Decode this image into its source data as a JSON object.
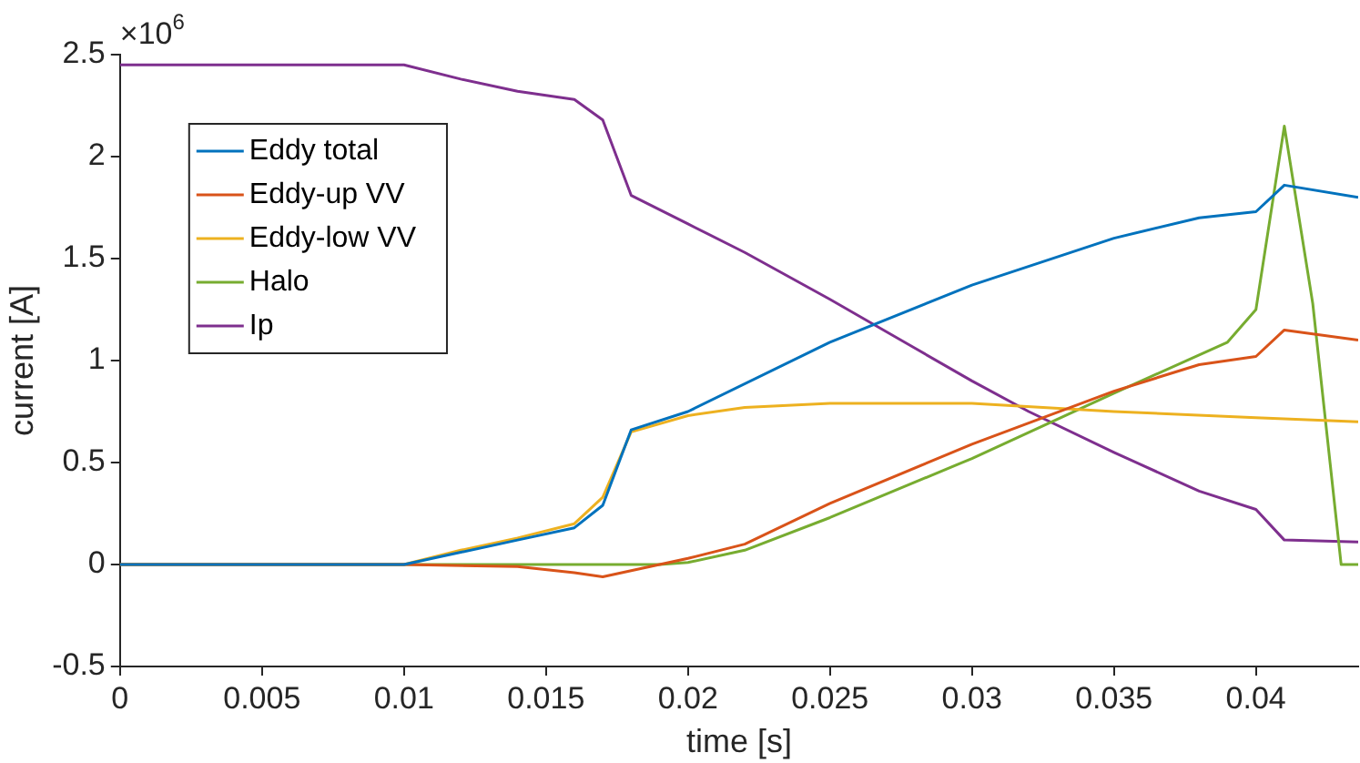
{
  "chart_data": {
    "type": "line",
    "xlabel": "time [s]",
    "ylabel": "current [A]",
    "annotations": [
      "×10$^{6}$"
    ],
    "xlim": [
      0,
      0.0436
    ],
    "xticks": [
      0,
      0.005,
      0.01,
      0.015,
      0.02,
      0.025,
      0.03,
      0.035,
      0.04
    ],
    "ylim": [
      -0.5,
      2.5
    ],
    "yticks": [
      -0.5,
      0,
      0.5,
      1,
      1.5,
      2,
      2.5
    ],
    "grid": false,
    "legend": "top left",
    "marker": "none",
    "line_style": "solid",
    "series": [
      {
        "name": "Eddy total",
        "color": "#0072bd",
        "x": [
          0,
          0.01,
          0.012,
          0.014,
          0.016,
          0.017,
          0.018,
          0.02,
          0.025,
          0.03,
          0.035,
          0.038,
          0.04,
          0.041,
          0.0436
        ],
        "values": [
          0,
          0,
          0.06,
          0.12,
          0.18,
          0.29,
          0.66,
          0.75,
          1.09,
          1.37,
          1.6,
          1.7,
          1.73,
          1.86,
          1.8
        ]
      },
      {
        "name": "Eddy-up VV",
        "color": "#d95319",
        "x": [
          0,
          0.01,
          0.014,
          0.016,
          0.017,
          0.019,
          0.02,
          0.022,
          0.025,
          0.03,
          0.035,
          0.038,
          0.04,
          0.041,
          0.0436
        ],
        "values": [
          0,
          0,
          -0.01,
          -0.04,
          -0.06,
          0,
          0.03,
          0.1,
          0.3,
          0.59,
          0.85,
          0.98,
          1.02,
          1.15,
          1.1
        ]
      },
      {
        "name": "Eddy-low VV",
        "color": "#edb120",
        "x": [
          0,
          0.01,
          0.012,
          0.014,
          0.016,
          0.017,
          0.018,
          0.02,
          0.022,
          0.025,
          0.03,
          0.035,
          0.04,
          0.0436
        ],
        "values": [
          0,
          0,
          0.07,
          0.13,
          0.2,
          0.33,
          0.65,
          0.73,
          0.77,
          0.79,
          0.79,
          0.75,
          0.72,
          0.7
        ]
      },
      {
        "name": "Halo",
        "color": "#77ac30",
        "x": [
          0,
          0.019,
          0.02,
          0.022,
          0.025,
          0.03,
          0.035,
          0.039,
          0.04,
          0.041,
          0.042,
          0.043,
          0.0436
        ],
        "values": [
          0,
          0,
          0.01,
          0.07,
          0.23,
          0.52,
          0.84,
          1.09,
          1.25,
          2.15,
          1.28,
          0,
          0
        ]
      },
      {
        "name": "Ip",
        "color": "#7e2f8e",
        "x": [
          0,
          0.01,
          0.012,
          0.014,
          0.016,
          0.017,
          0.018,
          0.02,
          0.022,
          0.025,
          0.028,
          0.03,
          0.032,
          0.035,
          0.038,
          0.04,
          0.041,
          0.0436
        ],
        "values": [
          2.45,
          2.45,
          2.38,
          2.32,
          2.28,
          2.18,
          1.81,
          1.67,
          1.53,
          1.3,
          1.06,
          0.9,
          0.75,
          0.55,
          0.36,
          0.27,
          0.12,
          0.11
        ]
      }
    ]
  }
}
